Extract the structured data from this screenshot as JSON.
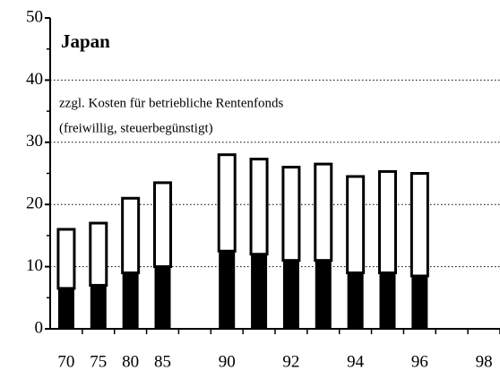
{
  "chart_data": {
    "type": "stacked-bar",
    "title": "Japan",
    "annotations": [
      "zzgl. Kosten für betriebliche Rentenfonds",
      "(freiwillig,  steuerbegünstigt)"
    ],
    "categories": [
      "70",
      "75",
      "80",
      "85",
      null,
      "90",
      null,
      "92",
      null,
      "94",
      null,
      "96",
      null,
      "98"
    ],
    "series": [
      {
        "color": "#000000",
        "values": [
          6.5,
          7,
          9,
          10,
          null,
          12.5,
          12,
          11,
          11,
          9,
          9,
          8.5,
          null,
          null
        ]
      },
      {
        "color": "#ffffff",
        "values": [
          9.5,
          10,
          12,
          13.5,
          null,
          15.5,
          15.3,
          15,
          15.5,
          15.5,
          16.3,
          16.5,
          null,
          null
        ]
      }
    ],
    "ylim": [
      0,
      50
    ],
    "yticks": [
      0,
      10,
      20,
      30,
      40,
      50
    ],
    "minor_yticks": [
      5,
      15,
      25,
      35,
      45
    ],
    "grid": true
  }
}
